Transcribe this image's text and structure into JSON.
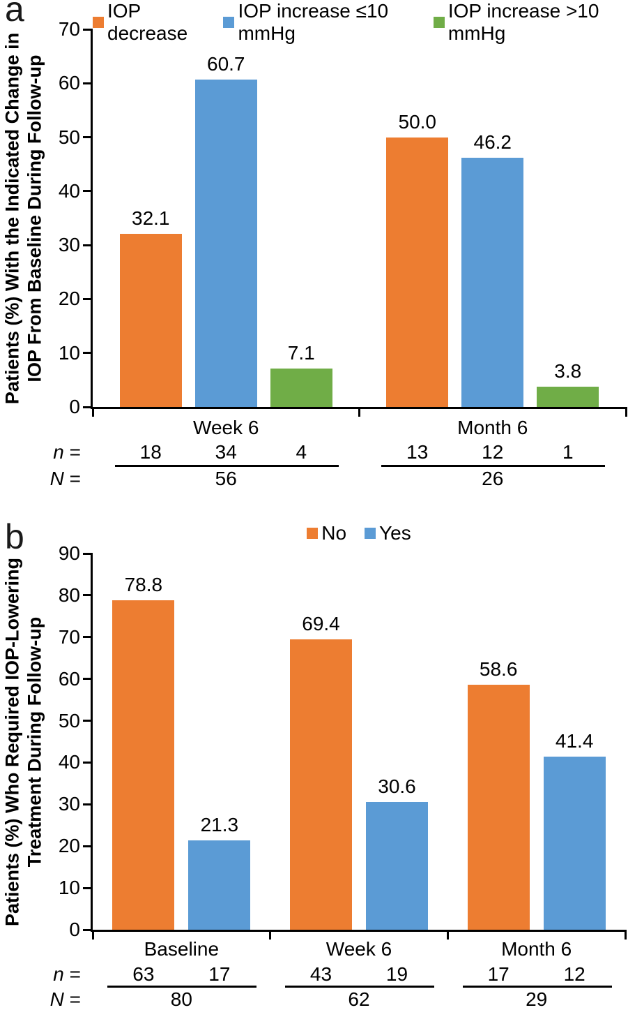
{
  "figure": {
    "background": "#ffffff",
    "panel_count": 2
  },
  "chart_data": [
    {
      "type": "bar",
      "panel_label": "a",
      "title": "",
      "xlabel": "",
      "ylabel": "Patients (%) With the Indicated Change in IOP From Baseline During Follow-up",
      "ylabel_lines": [
        "Patients (%) With the Indicated Change in",
        "IOP From Baseline During Follow-up"
      ],
      "ylim": [
        0,
        70
      ],
      "ytick_step": 10,
      "grid": false,
      "legend_position": "top",
      "categories": [
        "Week 6",
        "Month 6"
      ],
      "series": [
        {
          "name": "IOP decrease",
          "color": "#ED7D31",
          "values": [
            32.1,
            50.0
          ],
          "value_labels": [
            "32.1",
            "50.0"
          ],
          "n": [
            18,
            13
          ]
        },
        {
          "name": "IOP increase ≤10 mmHg",
          "color": "#5B9BD5",
          "values": [
            60.7,
            46.2
          ],
          "value_labels": [
            "60.7",
            "46.2"
          ],
          "n": [
            34,
            12
          ]
        },
        {
          "name": "IOP increase >10 mmHg",
          "color": "#70AD47",
          "values": [
            7.1,
            3.8
          ],
          "value_labels": [
            "7.1",
            "3.8"
          ],
          "n": [
            4,
            1
          ]
        }
      ],
      "n_row_label": "n =",
      "N_row_label": "N =",
      "group_N": [
        "56",
        "26"
      ]
    },
    {
      "type": "bar",
      "panel_label": "b",
      "title": "",
      "xlabel": "",
      "ylabel": "Patients (%) Who Required IOP-Lowering Treatment During Follow-up",
      "ylabel_lines": [
        "Patients (%) Who Required IOP-Lowering",
        "Treatment During Follow-up"
      ],
      "ylim": [
        0,
        90
      ],
      "ytick_step": 10,
      "grid": false,
      "legend_position": "top",
      "categories": [
        "Baseline",
        "Week 6",
        "Month 6"
      ],
      "series": [
        {
          "name": "No",
          "color": "#ED7D31",
          "values": [
            78.8,
            69.4,
            58.6
          ],
          "value_labels": [
            "78.8",
            "69.4",
            "58.6"
          ],
          "n": [
            63,
            43,
            17
          ]
        },
        {
          "name": "Yes",
          "color": "#5B9BD5",
          "values": [
            21.3,
            30.6,
            41.4
          ],
          "value_labels": [
            "21.3",
            "30.6",
            "41.4"
          ],
          "n": [
            17,
            19,
            12
          ]
        }
      ],
      "n_row_label": "n =",
      "N_row_label": "N =",
      "group_N": [
        "80",
        "62",
        "29"
      ]
    }
  ]
}
